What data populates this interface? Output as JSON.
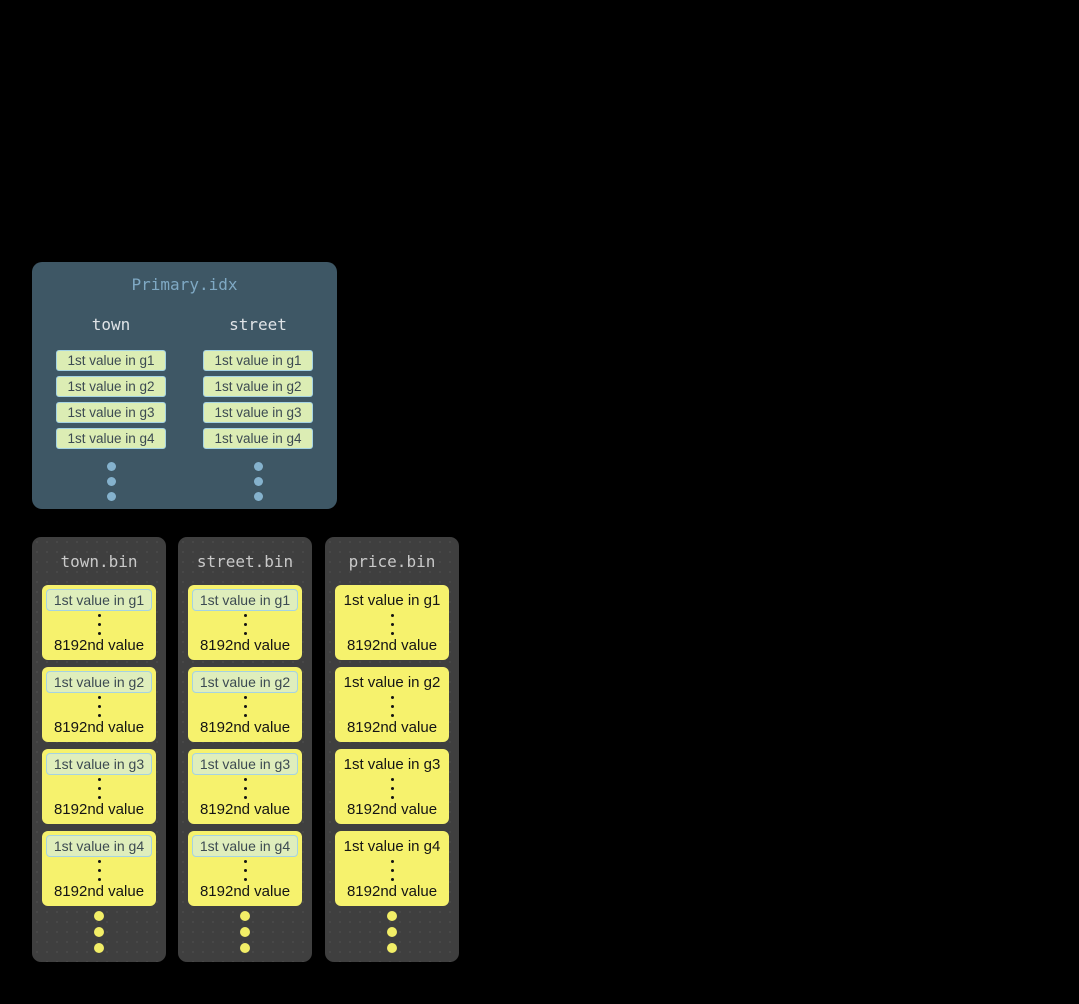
{
  "colors": {
    "background": "#000000",
    "index_panel_bg": "#3e5765",
    "index_title_text": "#7fa9c4",
    "index_header_text": "#dfe3e6",
    "mark_box_bg": "#dcedb4",
    "mark_box_border": "#a5d3e2",
    "mark_box_text": "#3c4a52",
    "index_ellipsis_dot": "#85b2cd",
    "bin_panel_bg": "#3f3f3f",
    "bin_title_text": "#c9c9c9",
    "granule_card_bg": "#f6f26d",
    "granule_card_text": "#141414",
    "bin_ellipsis_dot": "#f2ee67"
  },
  "idx": {
    "title": "Primary.idx",
    "columns": [
      {
        "header": "town",
        "entries": [
          "1st value in g1",
          "1st value in g2",
          "1st value in g3",
          "1st value in g4"
        ]
      },
      {
        "header": "street",
        "entries": [
          "1st value in g1",
          "1st value in g2",
          "1st value in g3",
          "1st value in g4"
        ]
      }
    ]
  },
  "bins": [
    {
      "title": "town.bin",
      "granules": [
        {
          "first": "1st value in g1",
          "last": "8192nd value"
        },
        {
          "first": "1st value in g2",
          "last": "8192nd value"
        },
        {
          "first": "1st value in g3",
          "last": "8192nd value"
        },
        {
          "first": "1st value in g4",
          "last": "8192nd value"
        }
      ]
    },
    {
      "title": "street.bin",
      "granules": [
        {
          "first": "1st value in g1",
          "last": "8192nd value"
        },
        {
          "first": "1st value in g2",
          "last": "8192nd value"
        },
        {
          "first": "1st value in g3",
          "last": "8192nd value"
        },
        {
          "first": "1st value in g4",
          "last": "8192nd value"
        }
      ]
    },
    {
      "title": "price.bin",
      "granules": [
        {
          "first": "1st value in g1",
          "last": "8192nd value"
        },
        {
          "first": "1st value in g2",
          "last": "8192nd value"
        },
        {
          "first": "1st value in g3",
          "last": "8192nd value"
        },
        {
          "first": "1st value in g4",
          "last": "8192nd value"
        }
      ]
    }
  ]
}
